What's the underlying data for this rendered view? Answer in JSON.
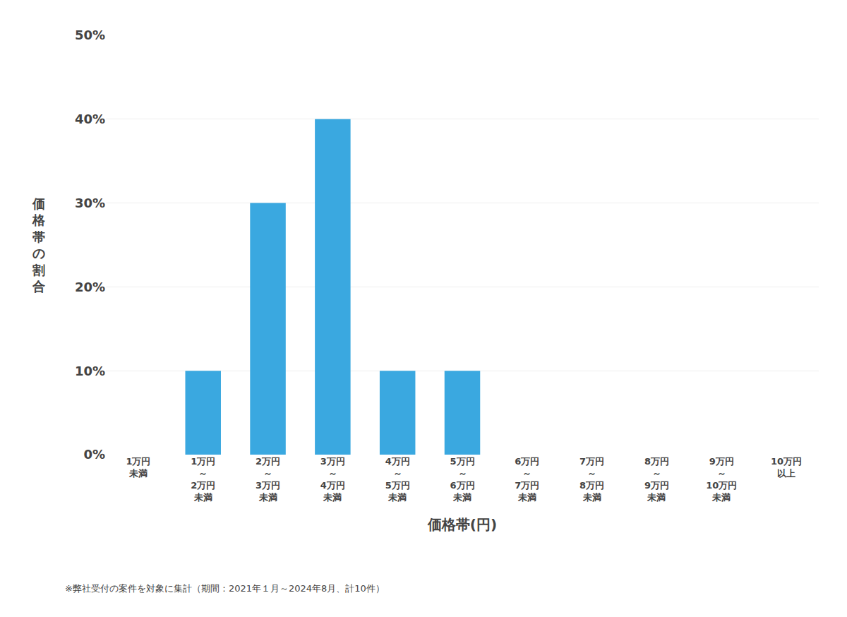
{
  "chart_data": {
    "type": "bar",
    "categories": [
      "1万円\n未満",
      "1万円\n～\n2万円\n未満",
      "2万円\n～\n3万円\n未満",
      "3万円\n～\n4万円\n未満",
      "4万円\n～\n5万円\n未満",
      "5万円\n～\n6万円\n未満",
      "6万円\n～\n7万円\n未満",
      "7万円\n～\n8万円\n未満",
      "8万円\n～\n9万円\n未満",
      "9万円\n～\n10万円\n未満",
      "10万円\n以上"
    ],
    "values": [
      0,
      10,
      30,
      40,
      10,
      10,
      0,
      0,
      0,
      0,
      0
    ],
    "color": "#3aa8e0",
    "xlabel": "価格帯(円)",
    "ylabel": "価格帯の割合",
    "annotations": [
      "※弊社受付の案件を対象に集計（期間：2021年１月～2024年8月、計10件）"
    ],
    "ylim": [
      0,
      50
    ],
    "yticks": [
      {
        "value": 0,
        "label": "0%"
      },
      {
        "value": 10,
        "label": "10%"
      },
      {
        "value": 20,
        "label": "20%"
      },
      {
        "value": 30,
        "label": "30%"
      },
      {
        "value": 40,
        "label": "40%"
      },
      {
        "value": 50,
        "label": "50%"
      }
    ],
    "grid": true
  }
}
